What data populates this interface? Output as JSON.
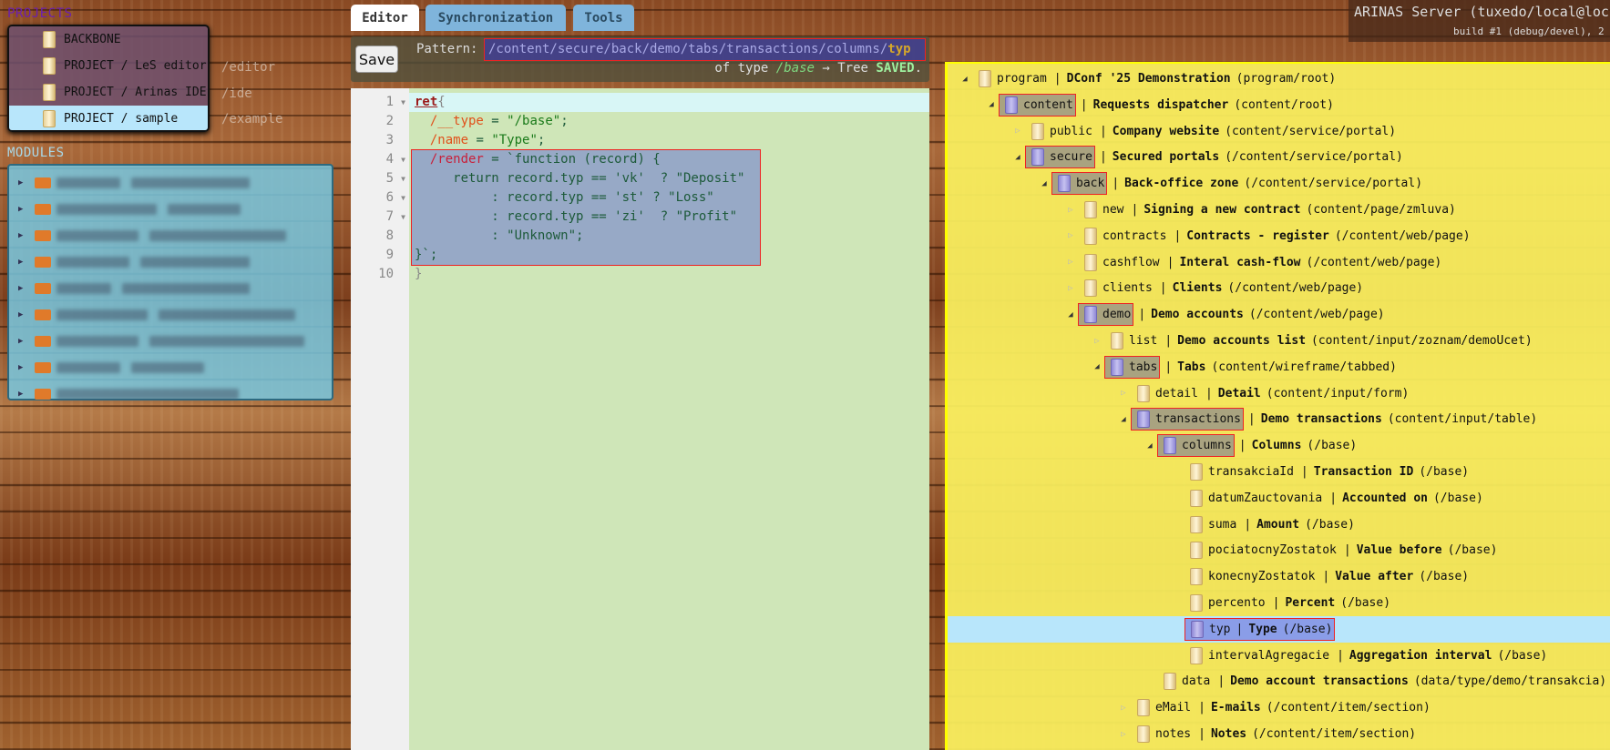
{
  "projects": {
    "label": "PROJECTS",
    "items": [
      {
        "name": "BACKBONE",
        "route": ""
      },
      {
        "name": "PROJECT / LeS editor",
        "route": "/editor"
      },
      {
        "name": "PROJECT / Arinas IDE",
        "route": "/ide"
      },
      {
        "name": "PROJECT / sample",
        "route": "/example",
        "selected": true
      }
    ]
  },
  "modules": {
    "label": "MODULES",
    "count_rows": 9
  },
  "tabs": [
    {
      "label": "Editor",
      "active": true
    },
    {
      "label": "Synchronization"
    },
    {
      "label": "Tools"
    }
  ],
  "pattern": {
    "save_label": "Save",
    "label": "Pattern:",
    "path": "/content/secure/back/demo/tabs/transactions/columns/",
    "leaf": "typ",
    "of_type": "of type",
    "type": "/base",
    "arrow": "→ Tree",
    "status": "SAVED",
    "dot": "."
  },
  "server": {
    "name": "ARINAS Server (tuxedo/local@local",
    "build": "build #1 (debug/devel), 2"
  },
  "code": {
    "lines": [
      "1",
      "2",
      "3",
      "4",
      "5",
      "6",
      "7",
      "8",
      "9",
      "10"
    ]
  },
  "tree": [
    {
      "level": 0,
      "toggle": "open",
      "name": "program",
      "title": "DConf '25 Demonstration",
      "type": "(program/root)"
    },
    {
      "level": 1,
      "toggle": "open",
      "name": "content",
      "title": "Requests dispatcher",
      "type": "(content/root)",
      "hl": true
    },
    {
      "level": 2,
      "toggle": "closed",
      "name": "public",
      "title": "Company website",
      "type": "(content/service/portal)"
    },
    {
      "level": 2,
      "toggle": "open",
      "name": "secure",
      "title": "Secured portals",
      "type": "(/content/service/portal)",
      "hl": true
    },
    {
      "level": 3,
      "toggle": "open",
      "name": "back",
      "title": "Back-office zone",
      "type": "(/content/service/portal)",
      "hl": true
    },
    {
      "level": 4,
      "toggle": "closed",
      "name": "new",
      "title": "Signing a new contract",
      "type": "(content/page/zmluva)"
    },
    {
      "level": 4,
      "toggle": "closed",
      "name": "contracts",
      "title": "Contracts - register",
      "type": "(/content/web/page)"
    },
    {
      "level": 4,
      "toggle": "closed",
      "name": "cashflow",
      "title": "Interal cash-flow",
      "type": "(/content/web/page)"
    },
    {
      "level": 4,
      "toggle": "closed",
      "name": "clients",
      "title": "Clients",
      "type": "(/content/web/page)"
    },
    {
      "level": 4,
      "toggle": "open",
      "name": "demo",
      "title": "Demo accounts",
      "type": "(/content/web/page)",
      "hl": true
    },
    {
      "level": 5,
      "toggle": "closed",
      "name": "list",
      "title": "Demo accounts list",
      "type": "(content/input/zoznam/demoUcet)"
    },
    {
      "level": 5,
      "toggle": "open",
      "name": "tabs",
      "title": "Tabs",
      "type": "(content/wireframe/tabbed)",
      "hl": true
    },
    {
      "level": 6,
      "toggle": "closed",
      "name": "detail",
      "title": "Detail",
      "type": "(content/input/form)"
    },
    {
      "level": 6,
      "toggle": "open",
      "name": "transactions",
      "title": "Demo transactions",
      "type": "(content/input/table)",
      "hl": true
    },
    {
      "level": 7,
      "toggle": "open",
      "name": "columns",
      "title": "Columns",
      "type": "(/base)",
      "hl": true
    },
    {
      "level": 8,
      "toggle": "",
      "name": "transakciaId",
      "title": "Transaction ID",
      "type": "(/base)"
    },
    {
      "level": 8,
      "toggle": "",
      "name": "datumZauctovania",
      "title": "Accounted on",
      "type": "(/base)"
    },
    {
      "level": 8,
      "toggle": "",
      "name": "suma",
      "title": "Amount",
      "type": "(/base)"
    },
    {
      "level": 8,
      "toggle": "",
      "name": "pociatocnyZostatok",
      "title": "Value before",
      "type": "(/base)"
    },
    {
      "level": 8,
      "toggle": "",
      "name": "konecnyZostatok",
      "title": "Value after",
      "type": "(/base)"
    },
    {
      "level": 8,
      "toggle": "",
      "name": "percento",
      "title": "Percent",
      "type": "(/base)"
    },
    {
      "level": 8,
      "toggle": "",
      "name": "typ",
      "title": "Type",
      "type": "(/base)",
      "selected": true
    },
    {
      "level": 8,
      "toggle": "",
      "name": "intervalAgregacie",
      "title": "Aggregation interval",
      "type": "(/base)"
    },
    {
      "level": 7,
      "toggle": "",
      "name": "data",
      "title": "Demo account transactions",
      "type": "(data/type/demo/transakcia)"
    },
    {
      "level": 6,
      "toggle": "closed",
      "name": "eMail",
      "title": "E-mails",
      "type": "(/content/item/section)"
    },
    {
      "level": 6,
      "toggle": "closed",
      "name": "notes",
      "title": "Notes",
      "type": "(/content/item/section)"
    }
  ]
}
